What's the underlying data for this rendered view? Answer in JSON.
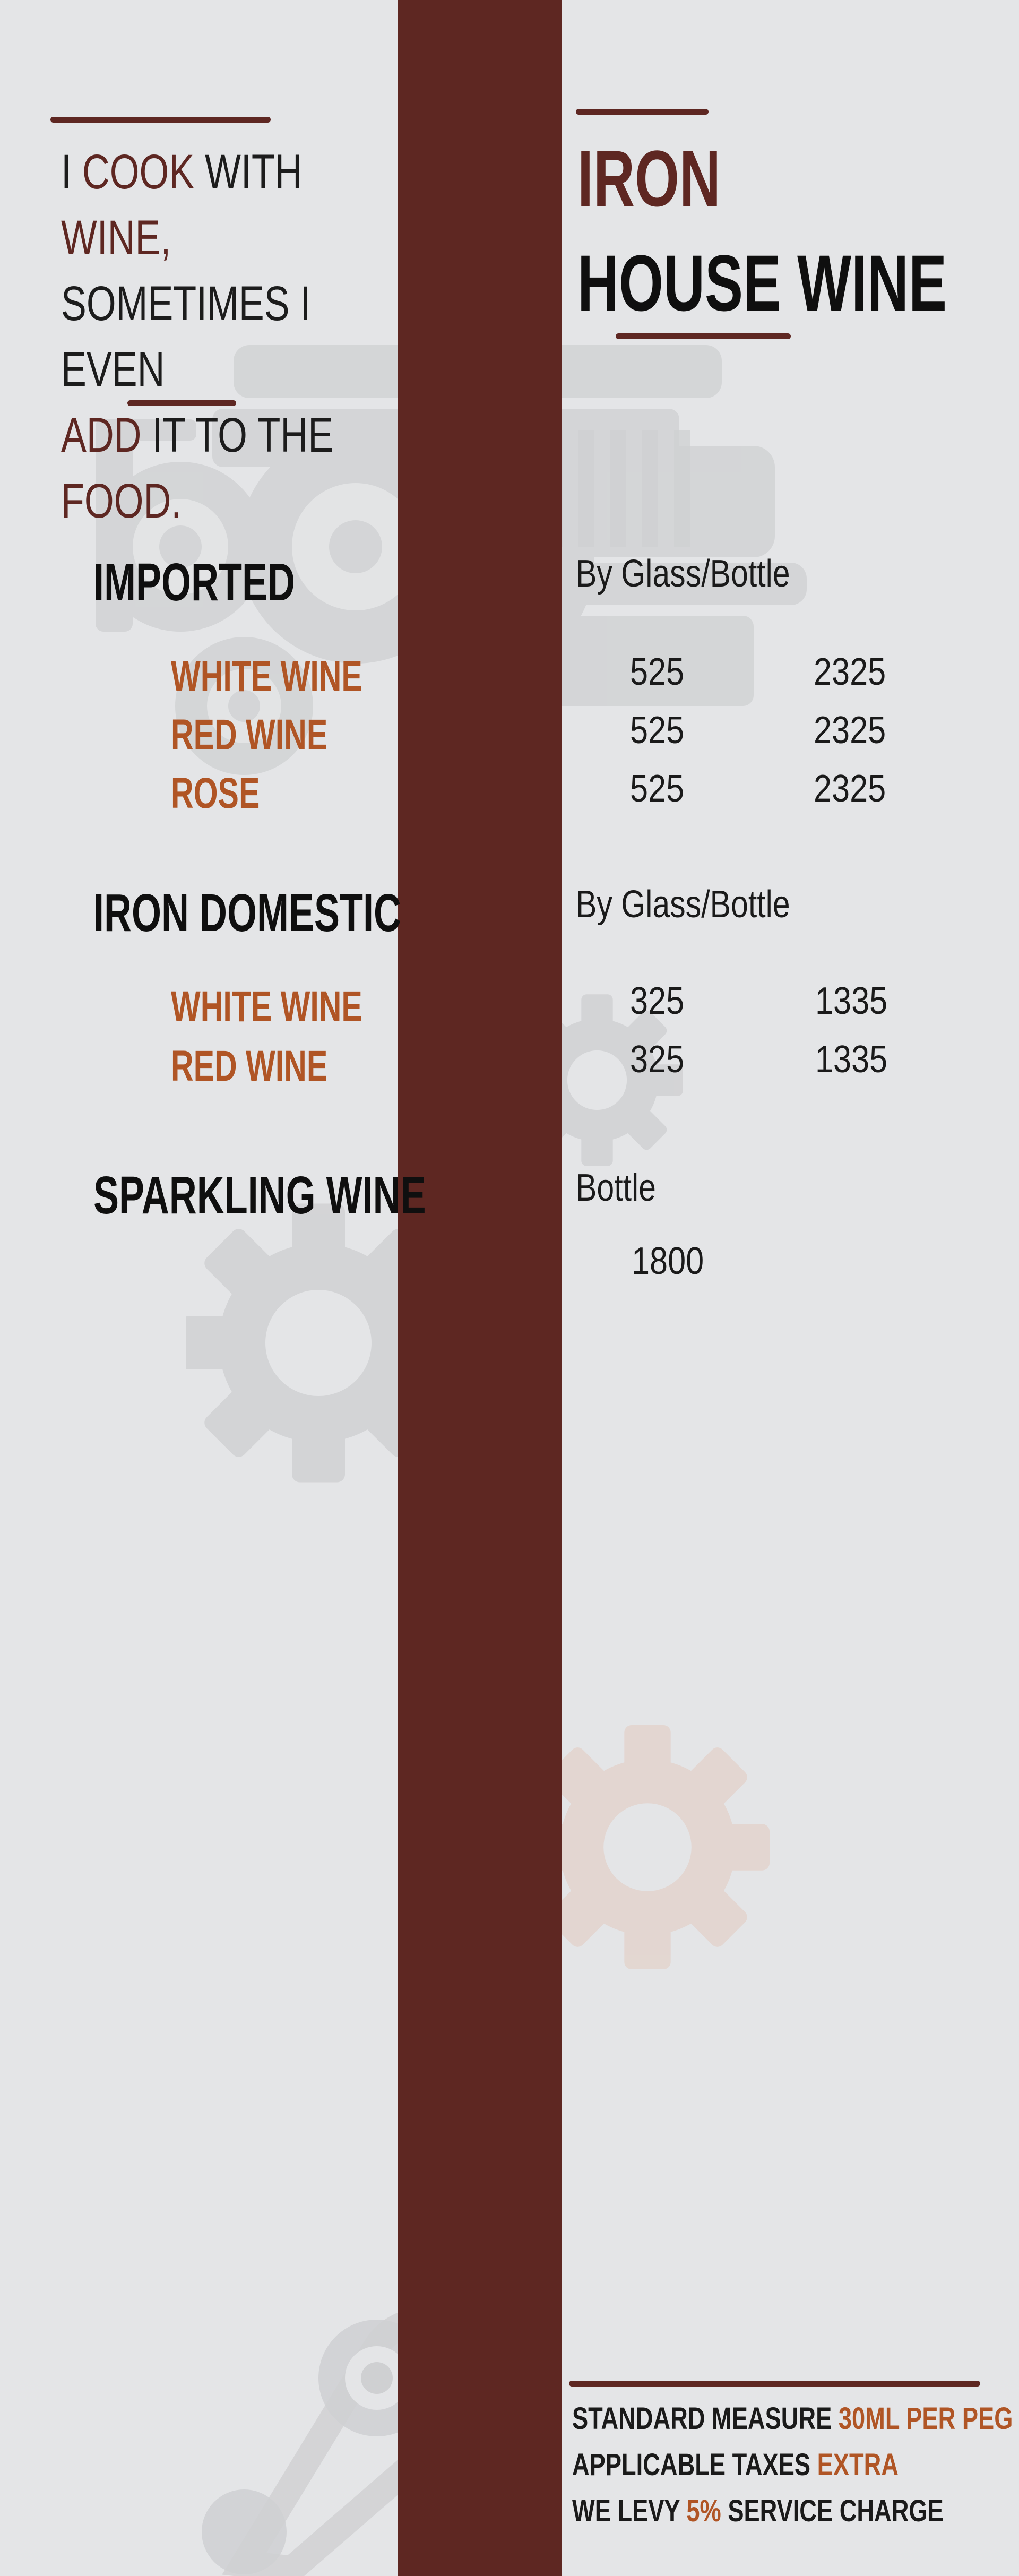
{
  "colors": {
    "stripe": "#5e2722",
    "accent": "#b05525",
    "background": "#e4e5e7",
    "text": "#0f0f0f"
  },
  "quote": {
    "w1": "I",
    "w2": "COOK",
    "w3": "WITH",
    "w4": "WINE,",
    "line2": "SOMETIMES I EVEN",
    "w5": "ADD",
    "w6": "IT TO THE",
    "w7": "FOOD."
  },
  "title": {
    "line1": "IRON",
    "line2": "HOUSE WINE"
  },
  "sections": [
    {
      "name": "IMPORTED",
      "column_header": "By Glass/Bottle",
      "items": [
        {
          "name": "WHITE WINE",
          "glass": "525",
          "bottle": "2325"
        },
        {
          "name": "RED WINE",
          "glass": "525",
          "bottle": "2325"
        },
        {
          "name": "ROSE",
          "glass": "525",
          "bottle": "2325"
        }
      ]
    },
    {
      "name": "IRON DOMESTIC",
      "column_header": "By Glass/Bottle",
      "items": [
        {
          "name": "WHITE WINE",
          "glass": "325",
          "bottle": "1335"
        },
        {
          "name": "RED WINE",
          "glass": "325",
          "bottle": "1335"
        }
      ]
    },
    {
      "name": "SPARKLING WINE",
      "column_header": "Bottle",
      "price": "1800"
    }
  ],
  "footer": {
    "line1_a": "STANDARD MEASURE",
    "line1_b": "30ML PER PEG",
    "line2_a": "APPLICABLE TAXES",
    "line2_b": "EXTRA",
    "line3_a": "WE LEVY",
    "line3_b": "5%",
    "line3_c": "SERVICE CHARGE"
  },
  "icons": [
    "engine-icon",
    "gear-icon",
    "timing-belt-icon"
  ]
}
